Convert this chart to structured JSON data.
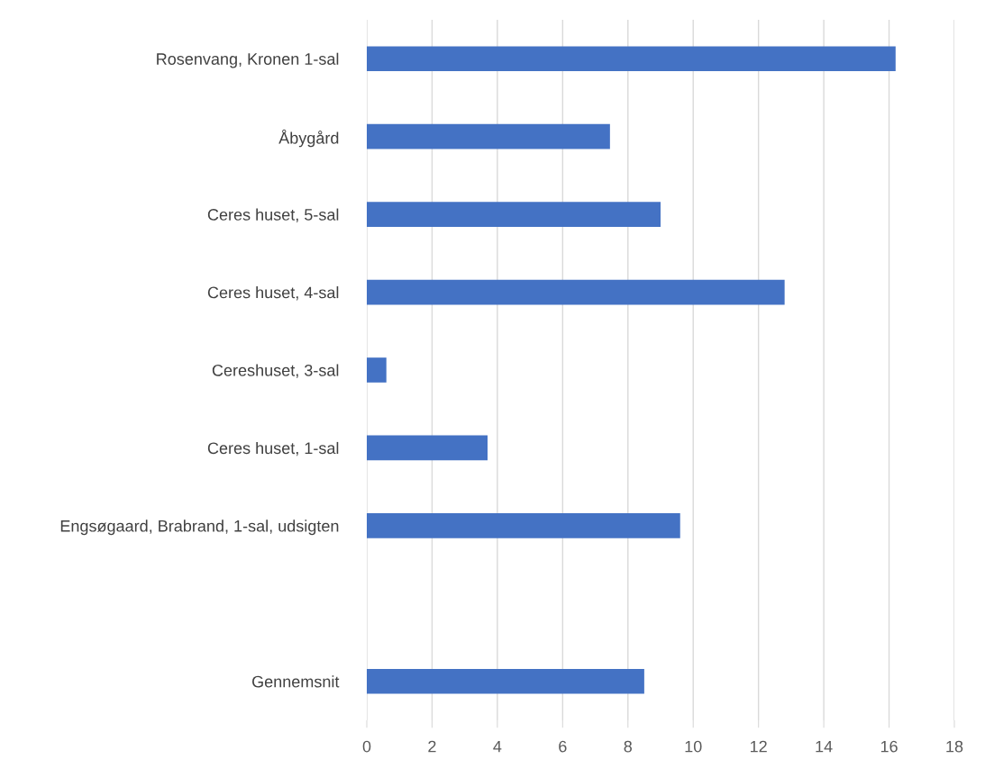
{
  "chart_data": {
    "type": "bar",
    "orientation": "horizontal",
    "categories": [
      "Rosenvang, Kronen 1-sal",
      "Åbygård",
      "Ceres huset, 5-sal",
      "Ceres huset, 4-sal",
      "Cereshuset, 3-sal",
      "Ceres huset, 1-sal",
      "Engsøgaard, Brabrand, 1-sal, udsigten",
      null,
      "Gennemsnit"
    ],
    "values": [
      16.2,
      7.45,
      9.0,
      12.8,
      0.6,
      3.7,
      9.6,
      null,
      8.5
    ],
    "color": "#4472c4",
    "xlim": [
      0,
      18
    ],
    "xticks": [
      0,
      2,
      4,
      6,
      8,
      10,
      12,
      14,
      16,
      18
    ],
    "grid": "x",
    "legend": false
  }
}
